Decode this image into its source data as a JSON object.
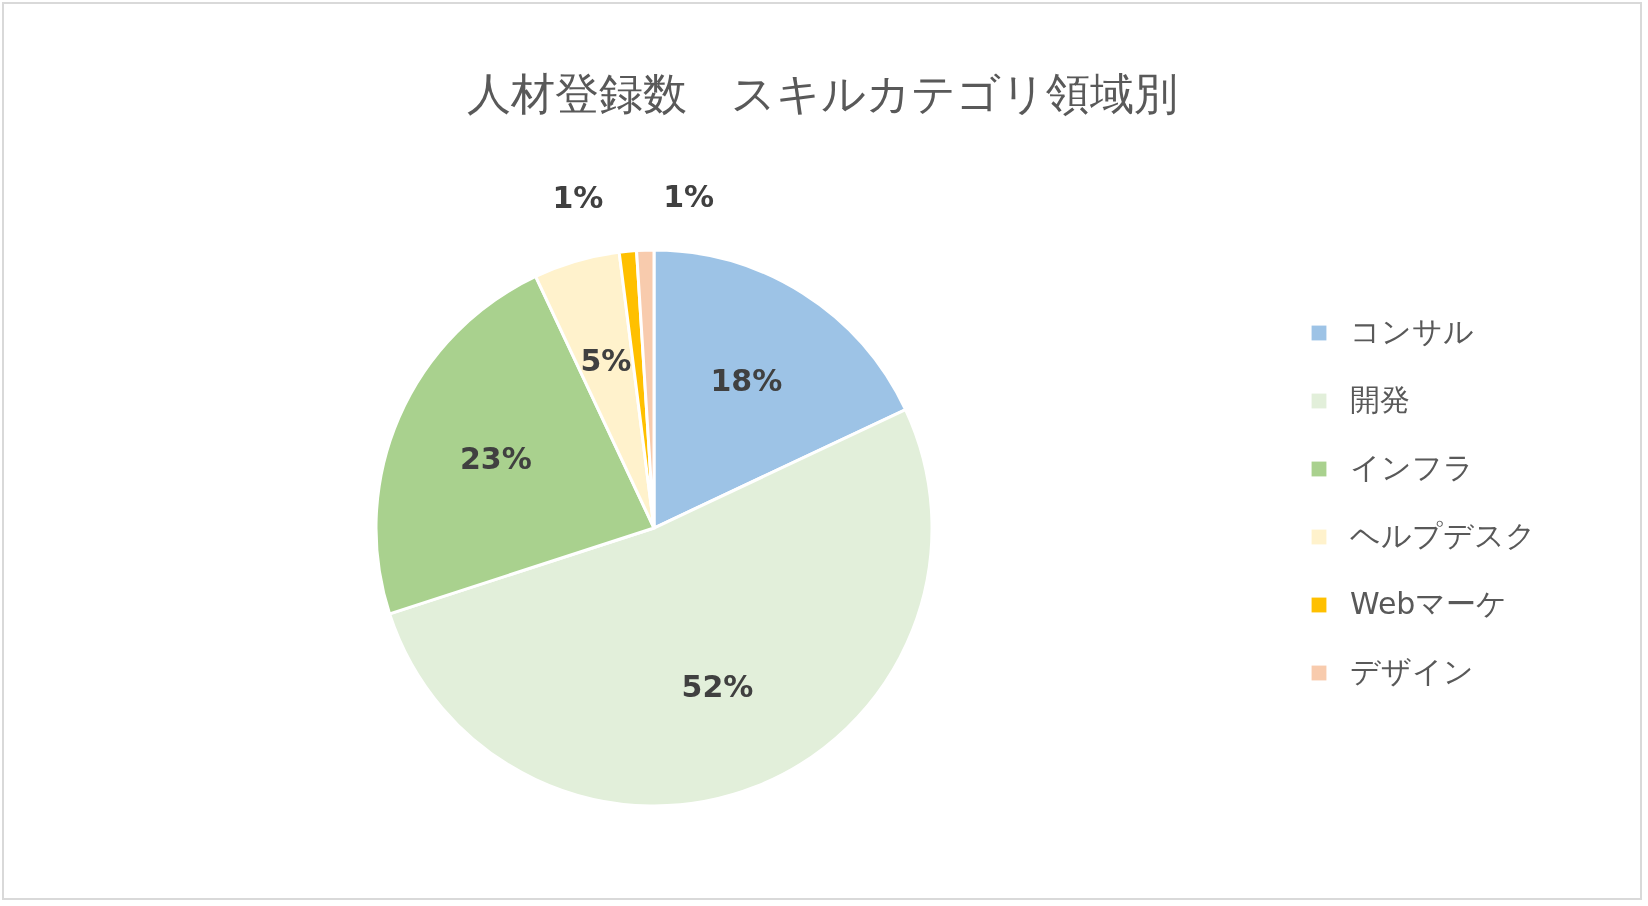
{
  "chart_data": {
    "type": "pie",
    "title": "人材登録数　スキルカテゴリ領域別",
    "categories": [
      "コンサル",
      "開発",
      "インフラ",
      "ヘルプデスク",
      "Webマーケ",
      "デザイン"
    ],
    "values": [
      18,
      52,
      23,
      5,
      1,
      1
    ],
    "colors": [
      "#9dc3e6",
      "#e2efda",
      "#a9d18e",
      "#fff2cc",
      "#ffc000",
      "#f8cbad"
    ],
    "value_labels": [
      "18%",
      "52%",
      "23%",
      "5%",
      "1%",
      "1%"
    ],
    "legend": "right"
  }
}
